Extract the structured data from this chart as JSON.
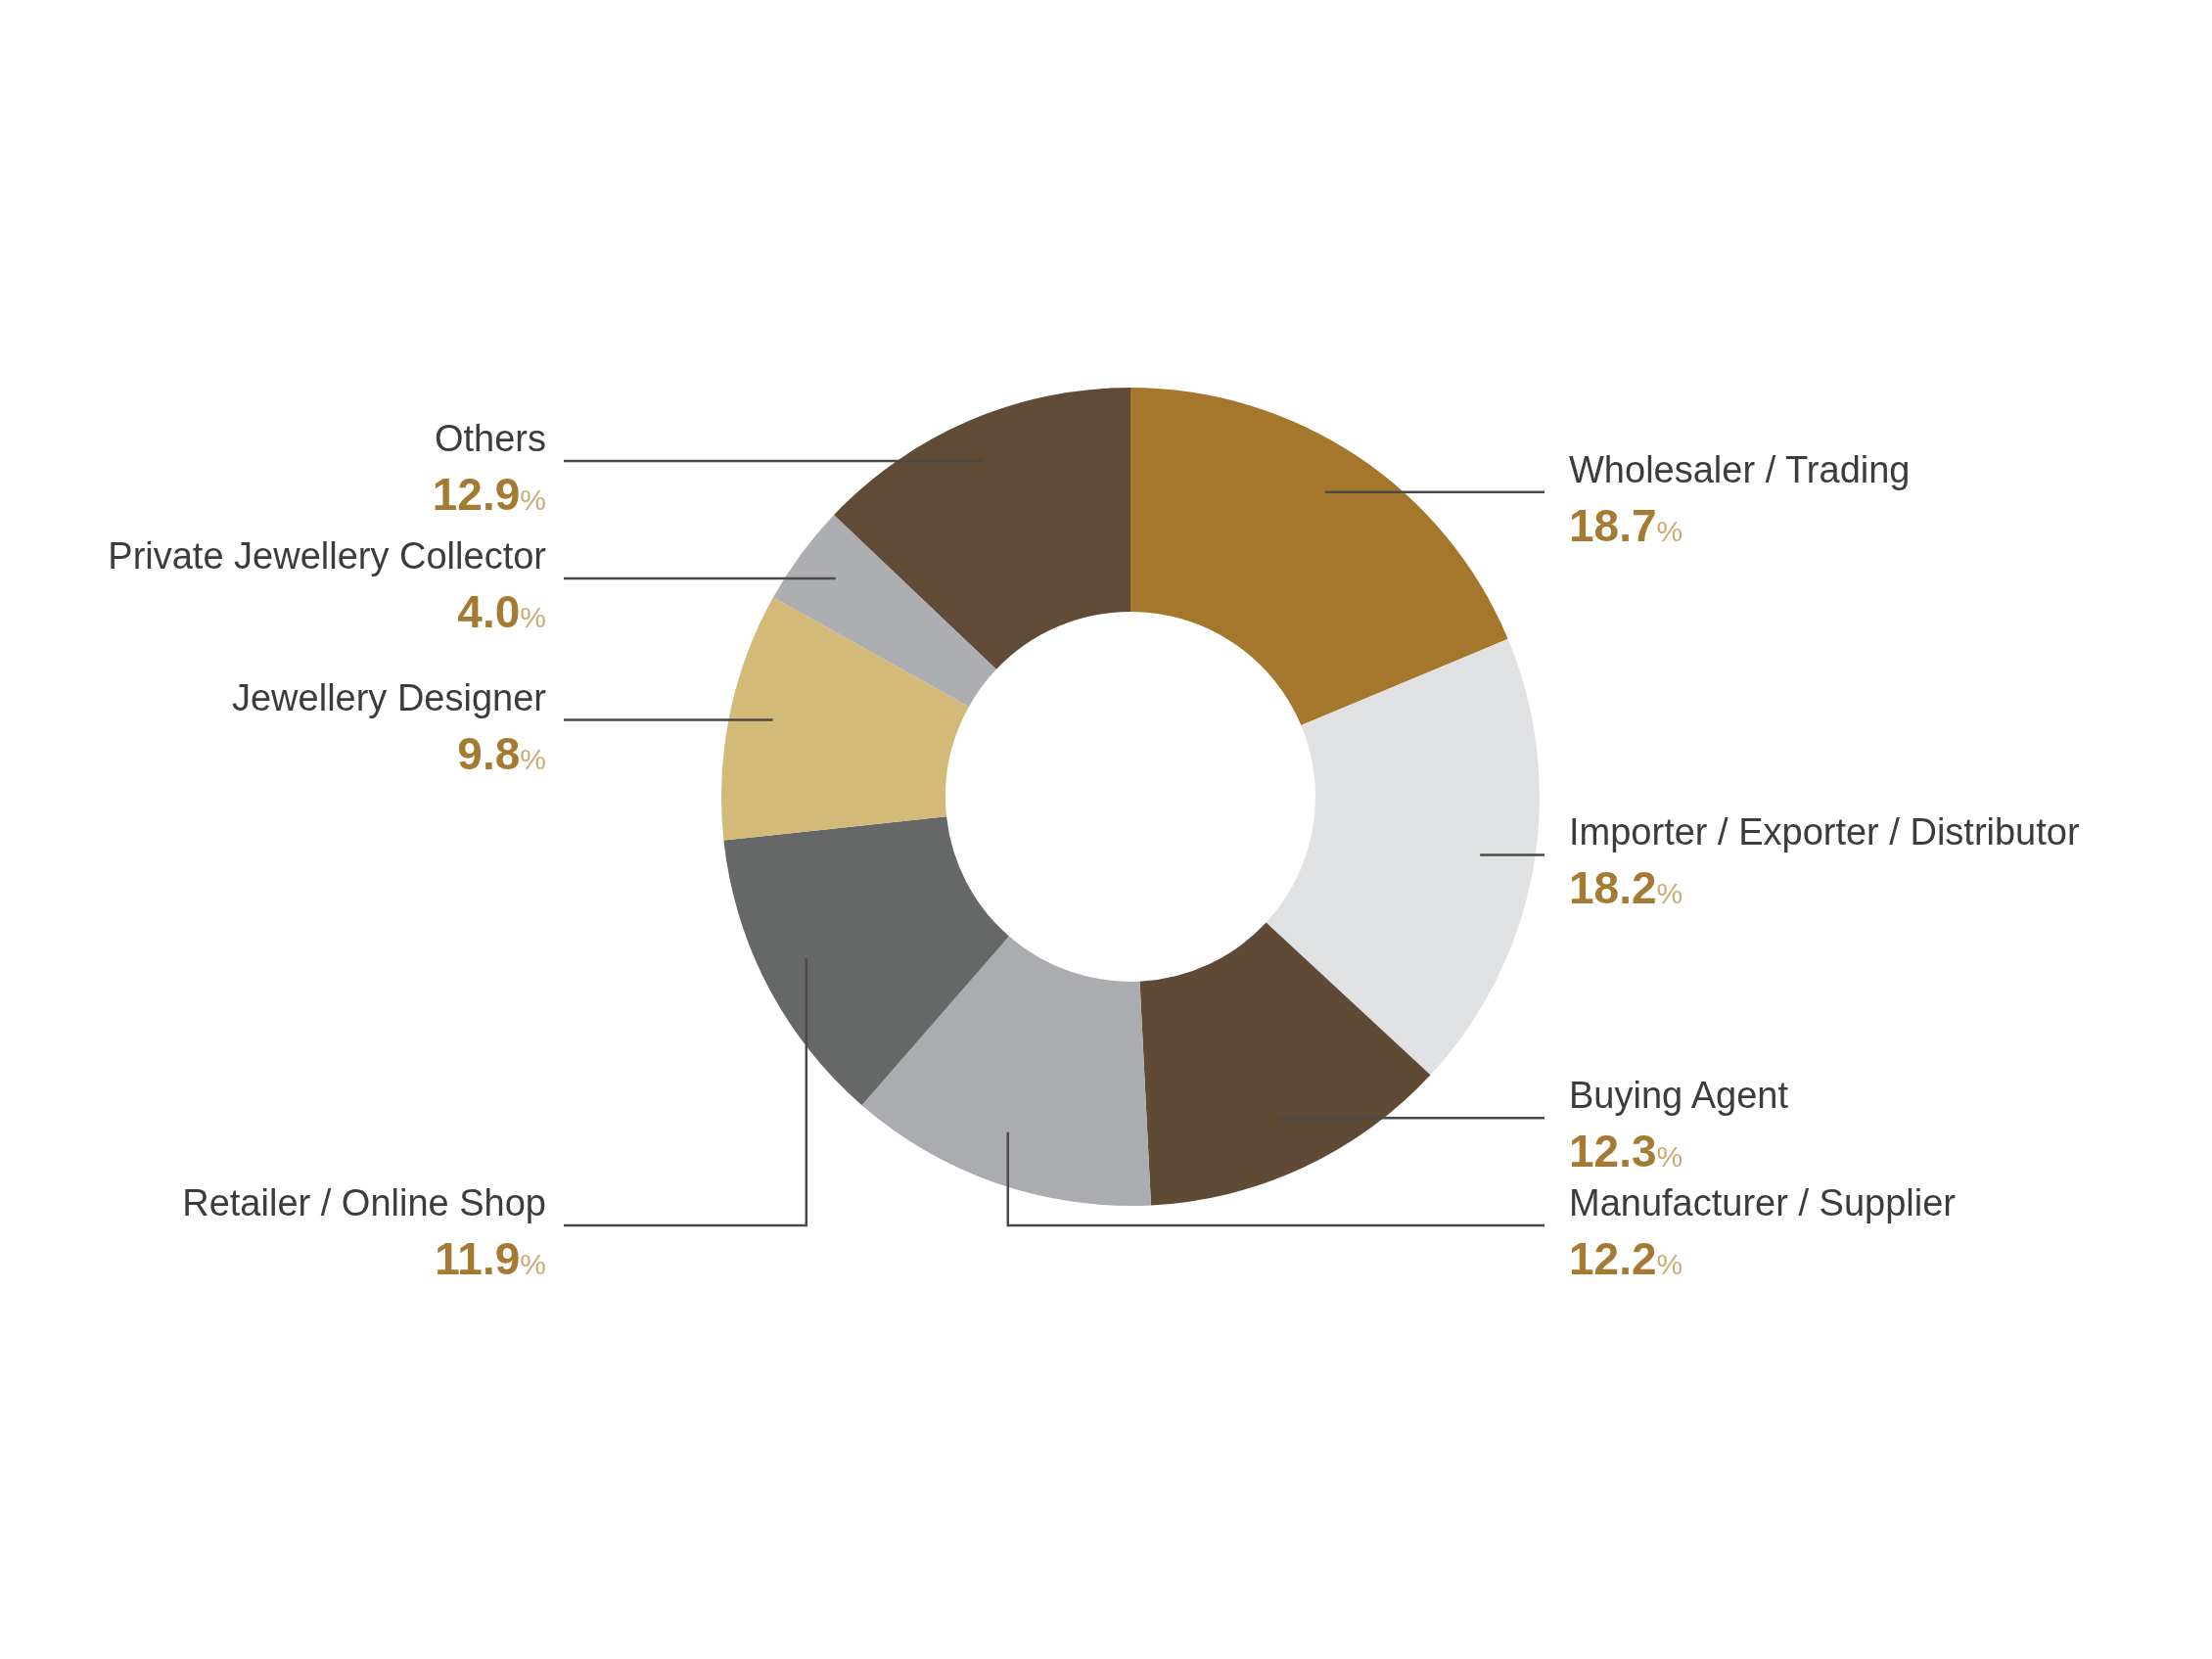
{
  "chart_data": {
    "type": "donut",
    "categories": [
      "Wholesaler / Trading",
      "Importer / Exporter / Distributor",
      "Buying Agent",
      "Manufacturer / Supplier",
      "Retailer / Online Shop",
      "Jewellery Designer",
      "Private Jewellery Collector",
      "Others"
    ],
    "values": [
      18.7,
      18.2,
      12.3,
      12.2,
      11.9,
      9.8,
      4.0,
      12.9
    ],
    "colors": [
      "#a4772c",
      "#e0e1e3",
      "#5f4b35",
      "#abacaf",
      "#666767",
      "#d3ba78",
      "#adaeb1",
      "#604b36"
    ],
    "value_labels": [
      "18.7%",
      "18.2%",
      "12.3%",
      "12.2%",
      "11.9%",
      "9.8%",
      "4.0%",
      "12.9%"
    ]
  }
}
